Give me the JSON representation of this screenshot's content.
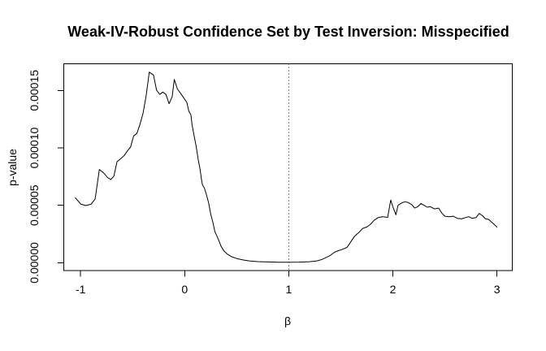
{
  "chart_data": {
    "type": "line",
    "title": "Weak-IV-Robust Confidence Set by Test Inversion: Misspecified",
    "xlabel": "β",
    "ylabel": "p-value",
    "x_ticks": {
      "values": [
        -1,
        0,
        1,
        2,
        3
      ],
      "labels": [
        "-1",
        "0",
        "1",
        "2",
        "3"
      ]
    },
    "y_ticks": {
      "values": [
        0,
        5e-05,
        0.0001,
        0.00015
      ],
      "labels": [
        "0.00000",
        "0.00005",
        "0.00010",
        "0.00015"
      ]
    },
    "xlim": [
      -1.16,
      3.16
    ],
    "ylim": [
      -6.6e-06,
      0.0001723
    ],
    "grid": false,
    "legend": "none",
    "reference_line": {
      "x": 1,
      "style": "dotted",
      "color": "#000000"
    },
    "series": [
      {
        "name": "p-value",
        "color": "#000000",
        "points": [
          [
            -1.05,
            5.65e-05
          ],
          [
            -1.0,
            5.11e-05
          ],
          [
            -0.95,
            4.98e-05
          ],
          [
            -0.9,
            5.09e-05
          ],
          [
            -0.86,
            5.55e-05
          ],
          [
            -0.82,
            8.12e-05
          ],
          [
            -0.78,
            7.83e-05
          ],
          [
            -0.74,
            7.41e-05
          ],
          [
            -0.71,
            7.24e-05
          ],
          [
            -0.68,
            7.54e-05
          ],
          [
            -0.65,
            8.79e-05
          ],
          [
            -0.62,
            9.02e-05
          ],
          [
            -0.58,
            9.34e-05
          ],
          [
            -0.55,
            9.74e-05
          ],
          [
            -0.52,
            0.0001007
          ],
          [
            -0.49,
            0.0001104
          ],
          [
            -0.46,
            0.0001125
          ],
          [
            -0.43,
            0.0001204
          ],
          [
            -0.4,
            0.0001303
          ],
          [
            -0.37,
            0.0001455
          ],
          [
            -0.34,
            0.0001659
          ],
          [
            -0.3,
            0.0001635
          ],
          [
            -0.27,
            0.0001502
          ],
          [
            -0.24,
            0.0001465
          ],
          [
            -0.21,
            0.0001486
          ],
          [
            -0.18,
            0.0001465
          ],
          [
            -0.15,
            0.0001384
          ],
          [
            -0.12,
            0.0001445
          ],
          [
            -0.1,
            0.0001596
          ],
          [
            -0.07,
            0.0001513
          ],
          [
            -0.04,
            0.0001476
          ],
          [
            -0.01,
            0.0001436
          ],
          [
            0.02,
            0.0001397
          ],
          [
            0.04,
            0.0001319
          ],
          [
            0.06,
            0.0001287
          ],
          [
            0.07,
            0.0001204
          ],
          [
            0.09,
            0.0001109
          ],
          [
            0.11,
            0.0001015
          ],
          [
            0.13,
            8.97e-05
          ],
          [
            0.15,
            8.03e-05
          ],
          [
            0.16,
            7.32e-05
          ],
          [
            0.17,
            6.8e-05
          ],
          [
            0.19,
            6.49e-05
          ],
          [
            0.21,
            5.9e-05
          ],
          [
            0.23,
            5.2e-05
          ],
          [
            0.25,
            4.26e-05
          ],
          [
            0.27,
            3.55e-05
          ],
          [
            0.29,
            2.72e-05
          ],
          [
            0.31,
            2.32e-05
          ],
          [
            0.33,
            1.89e-05
          ],
          [
            0.35,
            1.43e-05
          ],
          [
            0.38,
            1e-05
          ],
          [
            0.41,
            7.6e-06
          ],
          [
            0.45,
            5.3e-06
          ],
          [
            0.5,
            3.7e-06
          ],
          [
            0.57,
            2.3e-06
          ],
          [
            0.62,
            1.6e-06
          ],
          [
            0.7,
            1e-06
          ],
          [
            0.8,
            7e-07
          ],
          [
            0.9,
            5e-07
          ],
          [
            1.0,
            5e-07
          ],
          [
            1.1,
            6e-07
          ],
          [
            1.2,
            9e-07
          ],
          [
            1.27,
            1.6e-06
          ],
          [
            1.32,
            2.9e-06
          ],
          [
            1.36,
            4.7e-06
          ],
          [
            1.4,
            6.4e-06
          ],
          [
            1.44,
            9.2e-06
          ],
          [
            1.48,
            1.06e-05
          ],
          [
            1.52,
            1.18e-05
          ],
          [
            1.56,
            1.34e-05
          ],
          [
            1.6,
            1.88e-05
          ],
          [
            1.63,
            2.28e-05
          ],
          [
            1.65,
            2.45e-05
          ],
          [
            1.68,
            2.69e-05
          ],
          [
            1.71,
            2.99e-05
          ],
          [
            1.75,
            3.11e-05
          ],
          [
            1.79,
            3.39e-05
          ],
          [
            1.82,
            3.69e-05
          ],
          [
            1.86,
            3.94e-05
          ],
          [
            1.9,
            4.01e-05
          ],
          [
            1.93,
            3.98e-05
          ],
          [
            1.95,
            3.94e-05
          ],
          [
            1.98,
            5.46e-05
          ],
          [
            2.0,
            4.88e-05
          ],
          [
            2.03,
            4.18e-05
          ],
          [
            2.05,
            5e-05
          ],
          [
            2.09,
            5.23e-05
          ],
          [
            2.12,
            5.31e-05
          ],
          [
            2.15,
            5.23e-05
          ],
          [
            2.18,
            5.07e-05
          ],
          [
            2.21,
            4.76e-05
          ],
          [
            2.24,
            4.88e-05
          ],
          [
            2.27,
            5.16e-05
          ],
          [
            2.3,
            5e-05
          ],
          [
            2.33,
            4.84e-05
          ],
          [
            2.36,
            4.88e-05
          ],
          [
            2.4,
            4.69e-05
          ],
          [
            2.44,
            4.76e-05
          ],
          [
            2.47,
            4.33e-05
          ],
          [
            2.5,
            4.05e-05
          ],
          [
            2.54,
            4.01e-05
          ],
          [
            2.58,
            4.05e-05
          ],
          [
            2.62,
            3.87e-05
          ],
          [
            2.66,
            3.82e-05
          ],
          [
            2.7,
            3.94e-05
          ],
          [
            2.73,
            4.01e-05
          ],
          [
            2.76,
            3.87e-05
          ],
          [
            2.8,
            3.94e-05
          ],
          [
            2.83,
            4.29e-05
          ],
          [
            2.86,
            4.1e-05
          ],
          [
            2.89,
            3.82e-05
          ],
          [
            2.92,
            3.77e-05
          ],
          [
            2.96,
            3.45e-05
          ],
          [
            3.0,
            3.11e-05
          ]
        ]
      }
    ]
  },
  "colors": {
    "background": "#ffffff",
    "line": "#000000",
    "box": "#000000",
    "text": "#000000",
    "reference_line": "#000000"
  }
}
